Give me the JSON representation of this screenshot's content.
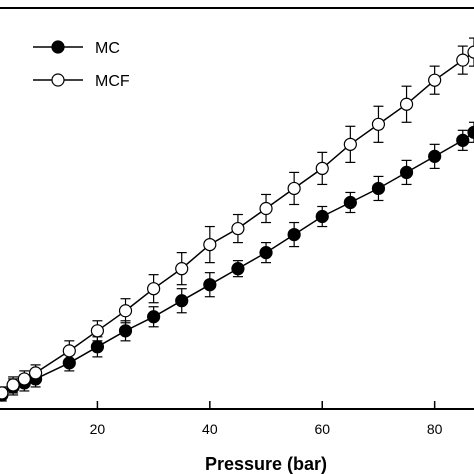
{
  "chart_data": {
    "type": "scatter",
    "xlabel": "Pressure (bar)",
    "ylabel": "",
    "xlim": [
      0,
      87
    ],
    "ylim": [
      0,
      100
    ],
    "x_ticks": [
      20,
      40,
      60,
      80
    ],
    "x_tick_labels": [
      "20",
      "40",
      "60",
      "80"
    ],
    "legend": {
      "placement": "top-left",
      "entries": [
        "MC",
        "MCF"
      ]
    },
    "series": [
      {
        "name": "MC",
        "marker": "filled-circle",
        "color": "#000000",
        "x": [
          1,
          3,
          5,
          7,
          9,
          15,
          20,
          25,
          30,
          35,
          40,
          45,
          50,
          55,
          60,
          65,
          70,
          75,
          80,
          85,
          87
        ],
        "y": [
          1.5,
          3.5,
          5.5,
          6.5,
          7.5,
          11.5,
          15.5,
          19.5,
          23,
          27,
          31,
          35,
          39,
          43.5,
          48,
          51.5,
          55,
          59,
          63,
          67,
          69
        ],
        "err": [
          1.5,
          1.5,
          2,
          2,
          2,
          2,
          2.5,
          2.5,
          2.5,
          3,
          3,
          2,
          2.5,
          3,
          2.5,
          2.5,
          3,
          3,
          3,
          2.5,
          2.5
        ]
      },
      {
        "name": "MCF",
        "marker": "open-circle",
        "color": "#000000",
        "x": [
          1,
          3,
          5,
          7,
          9,
          15,
          20,
          25,
          30,
          35,
          40,
          45,
          50,
          55,
          60,
          65,
          70,
          75,
          80,
          85,
          87
        ],
        "y": [
          2,
          4,
          6,
          7.5,
          9,
          14.5,
          19.5,
          24.5,
          30,
          35,
          41,
          45,
          50,
          55,
          60,
          66,
          71,
          76,
          82,
          87,
          89
        ],
        "err": [
          1.5,
          1.5,
          2,
          2,
          2,
          2.5,
          2.5,
          3,
          3.5,
          4,
          4.5,
          3.5,
          3.5,
          4,
          4,
          4.5,
          4.5,
          4.5,
          3.5,
          3.5,
          3.5
        ]
      }
    ]
  }
}
